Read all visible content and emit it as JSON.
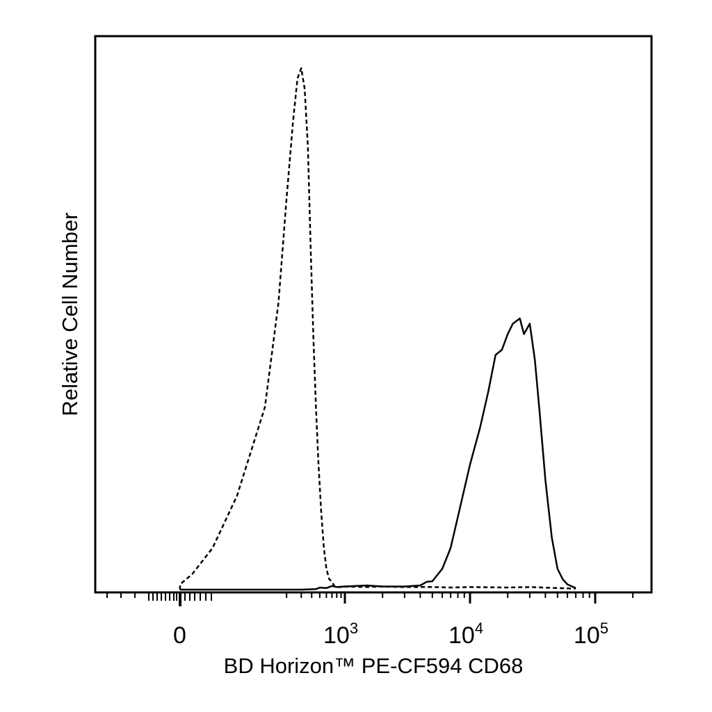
{
  "chart_data": {
    "type": "line",
    "title": "",
    "xlabel": "BD Horizon™ PE-CF594 CD68",
    "ylabel": "Relative Cell Number",
    "x_scale": "biexponential",
    "xlim": [
      -600,
      220000
    ],
    "ylim": [
      0,
      100
    ],
    "x_ticks": [
      {
        "value": 0,
        "base": "0",
        "exp": ""
      },
      {
        "value": 1000,
        "base": "10",
        "exp": "3"
      },
      {
        "value": 10000,
        "base": "10",
        "exp": "4"
      },
      {
        "value": 100000,
        "base": "10",
        "exp": "5"
      }
    ],
    "grid": false,
    "series": [
      {
        "style": "dashed",
        "x": [
          -10,
          0,
          15,
          40,
          70,
          110,
          160,
          200,
          240,
          270,
          300,
          330,
          360,
          390,
          420,
          450,
          480,
          520,
          560,
          600,
          650,
          700,
          760,
          800,
          900,
          1000,
          1500,
          2000,
          3000,
          4000,
          5000,
          7000,
          10000,
          20000,
          30000,
          50000,
          70000
        ],
        "y": [
          0,
          1,
          3,
          8,
          18,
          35,
          55,
          75,
          90,
          98,
          100,
          96,
          85,
          65,
          48,
          35,
          25,
          15,
          8,
          4,
          2,
          1.5,
          0.5,
          0.5,
          0.5,
          0.6,
          0.5,
          0.6,
          0.5,
          0.5,
          0.5,
          0.4,
          0.5,
          0.4,
          0.5,
          0.3,
          0.2
        ]
      },
      {
        "style": "solid",
        "x": [
          -10,
          100,
          300,
          450,
          500,
          600,
          700,
          800,
          1000,
          1500,
          2000,
          3000,
          4000,
          4500,
          5000,
          6000,
          7000,
          8000,
          10000,
          12000,
          14000,
          16000,
          18000,
          20000,
          22000,
          25000,
          27000,
          30000,
          33000,
          36000,
          40000,
          45000,
          50000,
          55000,
          60000,
          70000
        ],
        "y": [
          0,
          0,
          0,
          0.1,
          0.4,
          0.3,
          0.7,
          0.5,
          0.6,
          0.8,
          0.6,
          0.6,
          0.8,
          1.5,
          1.6,
          4,
          8,
          14,
          24,
          31,
          38,
          45,
          46,
          49,
          51,
          52,
          49,
          51,
          44,
          34,
          21,
          10,
          4,
          2,
          1,
          0.3
        ]
      }
    ]
  }
}
